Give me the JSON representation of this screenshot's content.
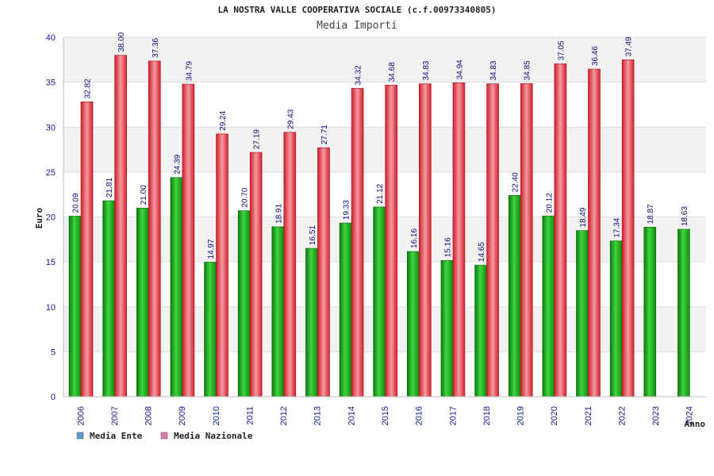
{
  "chart_data": {
    "type": "bar",
    "title": "LA NOSTRA VALLE COOPERATIVA SOCIALE (c.f.00973340805)",
    "subtitle": "Media Importi",
    "xlabel": "Anno",
    "ylabel": "Euro",
    "ylim": [
      0,
      40
    ],
    "yticks": [
      0,
      5,
      10,
      15,
      20,
      25,
      30,
      35,
      40
    ],
    "categories": [
      "2006",
      "2007",
      "2008",
      "2009",
      "2010",
      "2011",
      "2012",
      "2013",
      "2014",
      "2015",
      "2016",
      "2017",
      "2018",
      "2019",
      "2020",
      "2021",
      "2022",
      "2023",
      "2024"
    ],
    "series": [
      {
        "name": "Media Ente",
        "color": "#22b522",
        "values": [
          20.09,
          21.81,
          21.0,
          24.39,
          14.97,
          20.7,
          18.91,
          16.51,
          19.33,
          21.12,
          16.16,
          15.16,
          14.65,
          22.4,
          20.12,
          18.49,
          17.34,
          18.87,
          18.63
        ],
        "labels": [
          "20.09",
          "21.81",
          "21.00",
          "24.39",
          "14.97",
          "20.70",
          "18.91",
          "16.51",
          "19.33",
          "21.12",
          "16.16",
          "15.16",
          "14.65",
          "22.40",
          "20.12",
          "18.49",
          "17.34",
          "18.87",
          "18.63"
        ]
      },
      {
        "name": "Media Nazionale",
        "color": "#e8323c",
        "values": [
          32.82,
          38.0,
          37.36,
          34.79,
          29.24,
          27.19,
          29.43,
          27.71,
          34.32,
          34.68,
          34.83,
          34.94,
          34.83,
          34.85,
          37.05,
          36.46,
          37.49,
          null,
          null
        ],
        "labels": [
          "32.82",
          "38.00",
          "37.36",
          "34.79",
          "29.24",
          "27.19",
          "29.43",
          "27.71",
          "34.32",
          "34.68",
          "34.83",
          "34.94",
          "34.83",
          "34.85",
          "37.05",
          "36.46",
          "37.49",
          null,
          null
        ]
      }
    ],
    "legend": [
      {
        "label": "Media Ente",
        "color": "#5b9bd5"
      },
      {
        "label": "Media Nazionale",
        "color": "#e07ab0"
      }
    ],
    "legend_position": "bottom-left",
    "grid": true
  }
}
